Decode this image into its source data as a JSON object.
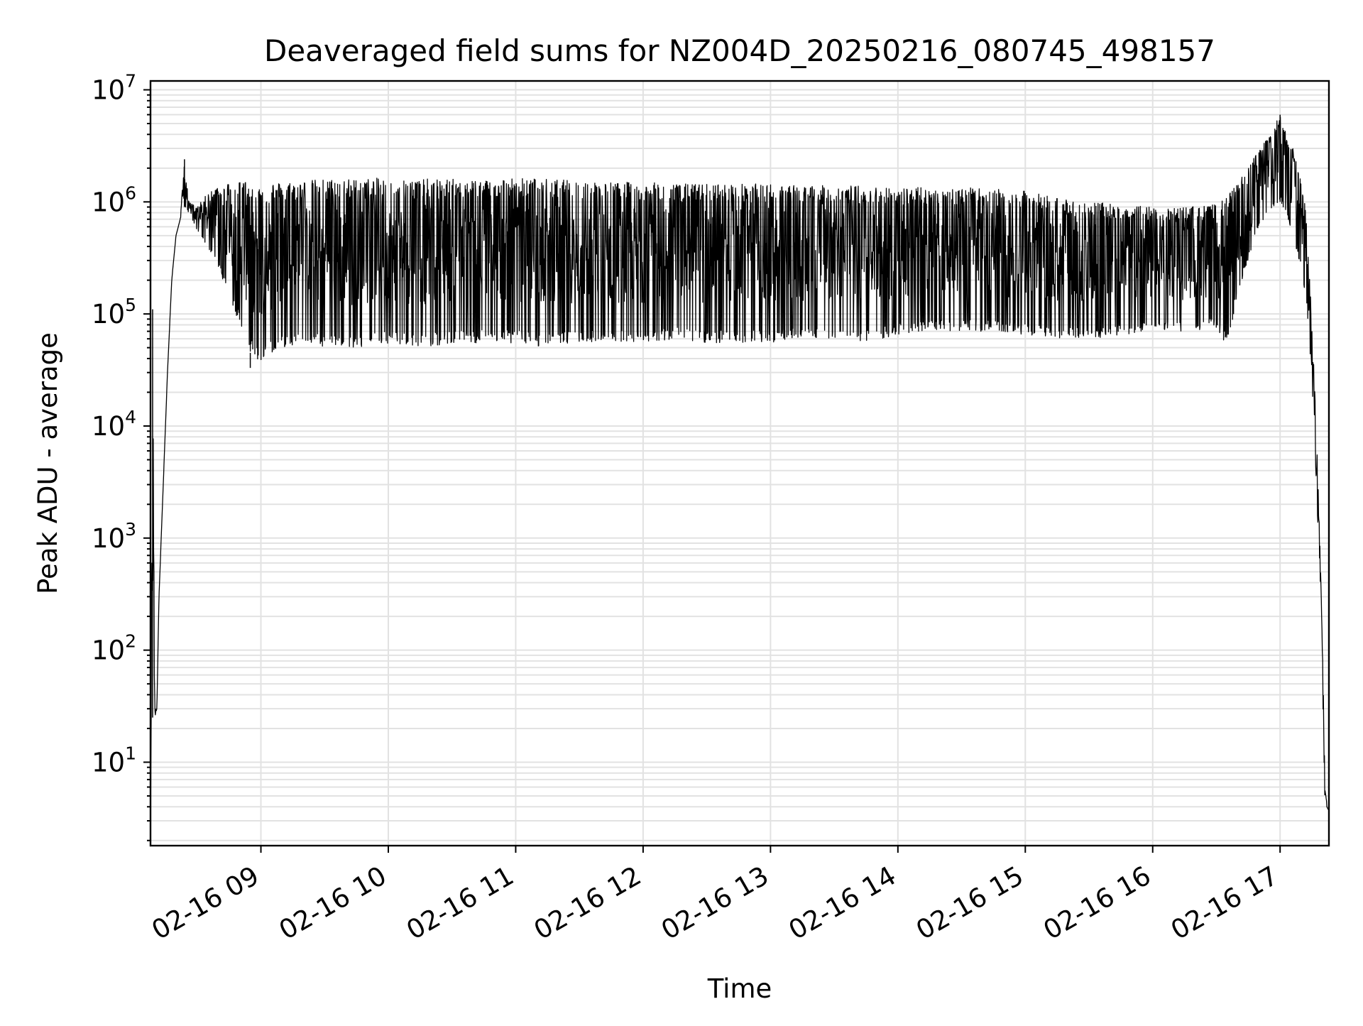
{
  "chart_data": {
    "type": "line",
    "title": "Deaveraged field sums for NZ004D_20250216_080745_498157",
    "xlabel": "Time",
    "ylabel": "Peak ADU - average",
    "x_axis": {
      "kind": "datetime",
      "range": [
        "2025-02-16 08:08",
        "2025-02-16 17:23"
      ],
      "ticks": [
        {
          "t": "2025-02-16 09:00",
          "label": "02-16 09"
        },
        {
          "t": "2025-02-16 10:00",
          "label": "02-16 10"
        },
        {
          "t": "2025-02-16 11:00",
          "label": "02-16 11"
        },
        {
          "t": "2025-02-16 12:00",
          "label": "02-16 12"
        },
        {
          "t": "2025-02-16 13:00",
          "label": "02-16 13"
        },
        {
          "t": "2025-02-16 14:00",
          "label": "02-16 14"
        },
        {
          "t": "2025-02-16 15:00",
          "label": "02-16 15"
        },
        {
          "t": "2025-02-16 16:00",
          "label": "02-16 16"
        },
        {
          "t": "2025-02-16 17:00",
          "label": "02-16 17"
        }
      ],
      "tick_label_rotation": 30
    },
    "y_axis": {
      "scale": "log",
      "range": [
        1.8,
        12000000
      ],
      "ticks": [
        {
          "value": 10,
          "base": "10",
          "exp": "1"
        },
        {
          "value": 100,
          "base": "10",
          "exp": "2"
        },
        {
          "value": 1000,
          "base": "10",
          "exp": "3"
        },
        {
          "value": 10000,
          "base": "10",
          "exp": "4"
        },
        {
          "value": 100000,
          "base": "10",
          "exp": "5"
        },
        {
          "value": 1000000,
          "base": "10",
          "exp": "6"
        },
        {
          "value": 10000000,
          "base": "10",
          "exp": "7"
        }
      ]
    },
    "grid": {
      "major": true,
      "minor_y": true
    },
    "legend": "none",
    "series": [
      {
        "line_color": "#000000",
        "envelope": {
          "x": [
            "2025-02-16 08:08",
            "2025-02-16 08:09",
            "2025-02-16 08:10",
            "2025-02-16 08:11",
            "2025-02-16 08:12",
            "2025-02-16 08:14",
            "2025-02-16 08:16",
            "2025-02-16 08:18",
            "2025-02-16 08:20",
            "2025-02-16 08:22",
            "2025-02-16 08:24",
            "2025-02-16 08:26",
            "2025-02-16 08:30",
            "2025-02-16 08:35",
            "2025-02-16 08:40",
            "2025-02-16 08:45",
            "2025-02-16 08:50",
            "2025-02-16 08:55",
            "2025-02-16 09:00",
            "2025-02-16 09:05",
            "2025-02-16 09:10",
            "2025-02-16 09:20",
            "2025-02-16 09:30",
            "2025-02-16 09:45",
            "2025-02-16 10:00",
            "2025-02-16 10:15",
            "2025-02-16 10:30",
            "2025-02-16 10:45",
            "2025-02-16 11:00",
            "2025-02-16 11:15",
            "2025-02-16 11:30",
            "2025-02-16 11:45",
            "2025-02-16 12:00",
            "2025-02-16 12:15",
            "2025-02-16 12:30",
            "2025-02-16 12:45",
            "2025-02-16 13:00",
            "2025-02-16 13:15",
            "2025-02-16 13:30",
            "2025-02-16 13:45",
            "2025-02-16 14:00",
            "2025-02-16 14:15",
            "2025-02-16 14:30",
            "2025-02-16 14:45",
            "2025-02-16 15:00",
            "2025-02-16 15:15",
            "2025-02-16 15:30",
            "2025-02-16 15:45",
            "2025-02-16 16:00",
            "2025-02-16 16:15",
            "2025-02-16 16:30",
            "2025-02-16 16:35",
            "2025-02-16 16:40",
            "2025-02-16 16:45",
            "2025-02-16 16:50",
            "2025-02-16 16:55",
            "2025-02-16 17:00",
            "2025-02-16 17:03",
            "2025-02-16 17:06",
            "2025-02-16 17:09",
            "2025-02-16 17:12",
            "2025-02-16 17:14",
            "2025-02-16 17:16",
            "2025-02-16 17:18",
            "2025-02-16 17:19",
            "2025-02-16 17:20",
            "2025-02-16 17:21",
            "2025-02-16 17:22",
            "2025-02-16 17:23"
          ],
          "upper": [
            1.8,
            110000,
            30,
            30,
            300,
            3000,
            30000,
            200000,
            500000,
            700000,
            2400000,
            1000000,
            900000,
            1200000,
            1400000,
            1500000,
            1600000,
            1500000,
            1400000,
            1500000,
            1500000,
            1550000,
            1600000,
            1600000,
            1650000,
            1600000,
            1600000,
            1600000,
            1650000,
            1600000,
            1550000,
            1500000,
            1500000,
            1450000,
            1450000,
            1450000,
            1450000,
            1400000,
            1400000,
            1400000,
            1350000,
            1350000,
            1350000,
            1300000,
            1250000,
            1100000,
            1000000,
            950000,
            900000,
            900000,
            950000,
            1100000,
            1500000,
            2000000,
            3000000,
            4000000,
            6000000,
            4000000,
            3000000,
            2000000,
            1000000,
            200000,
            30000,
            3000,
            600,
            100,
            10,
            4,
            3.7
          ],
          "lower": [
            1.8,
            25,
            25,
            30,
            300,
            3000,
            30000,
            200000,
            500000,
            700000,
            900000,
            800000,
            550000,
            400000,
            250000,
            150000,
            80000,
            45000,
            35000,
            45000,
            50000,
            55000,
            50000,
            50000,
            55000,
            50000,
            55000,
            55000,
            55000,
            50000,
            55000,
            55000,
            55000,
            60000,
            55000,
            55000,
            55000,
            60000,
            60000,
            55000,
            65000,
            70000,
            70000,
            70000,
            65000,
            60000,
            60000,
            65000,
            70000,
            70000,
            75000,
            50000,
            150000,
            300000,
            600000,
            800000,
            1000000,
            800000,
            500000,
            300000,
            150000,
            50000,
            10000,
            1000,
            300,
            50,
            5,
            4,
            3.7
          ]
        },
        "spikes": [
          {
            "x": "2025-02-16 08:09",
            "y": 110000
          },
          {
            "x": "2025-02-16 08:24",
            "y": 2400000
          },
          {
            "x": "2025-02-16 08:55",
            "y": 33000
          },
          {
            "x": "2025-02-16 17:00",
            "y": 6000000
          }
        ]
      }
    ]
  }
}
